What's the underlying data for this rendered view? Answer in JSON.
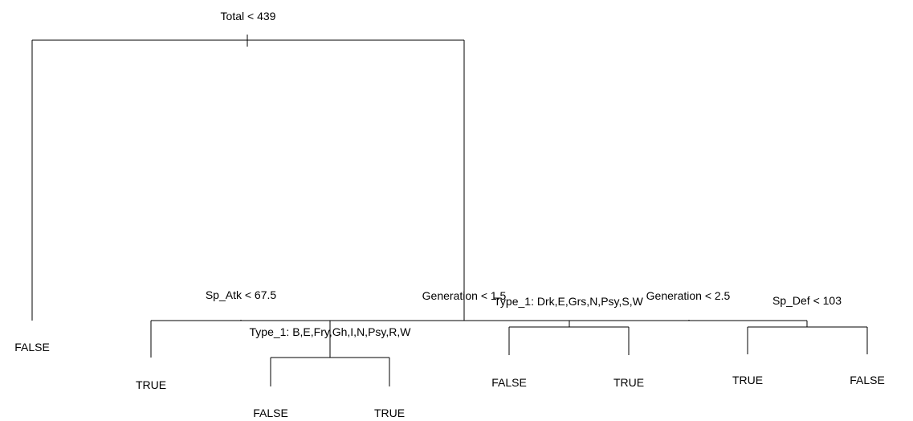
{
  "tree": {
    "root": {
      "split": "Total < 439",
      "left": {
        "leaf": "FALSE"
      },
      "right": {
        "split": "Generation < 1.5",
        "left": {
          "split": "Sp_Atk < 67.5",
          "left": {
            "leaf": "TRUE"
          },
          "right": {
            "split": "Type_1: B,E,Fry,Gh,I,N,Psy,R,W",
            "left": {
              "leaf": "FALSE"
            },
            "right": {
              "leaf": "TRUE"
            }
          }
        },
        "right": {
          "split": "Generation < 2.5",
          "left": {
            "split": "Type_1: Drk,E,Grs,N,Psy,S,W",
            "left": {
              "leaf": "FALSE"
            },
            "right": {
              "leaf": "TRUE"
            }
          },
          "right": {
            "split": "Sp_Def < 103",
            "left": {
              "leaf": "TRUE"
            },
            "right": {
              "leaf": "FALSE"
            }
          }
        }
      }
    }
  }
}
